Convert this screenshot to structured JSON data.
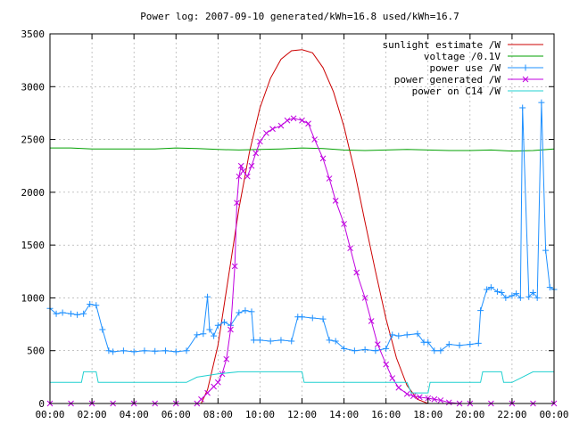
{
  "chart_data": {
    "type": "line",
    "title": "Power log: 2007-09-10 generated/kWh=16.8 used/kWh=16.7",
    "xlabel": "",
    "ylabel": "",
    "xlim": [
      0,
      24
    ],
    "ylim": [
      0,
      3500
    ],
    "x_ticks": [
      {
        "value": 0,
        "label": "00:00"
      },
      {
        "value": 2,
        "label": "02:00"
      },
      {
        "value": 4,
        "label": "04:00"
      },
      {
        "value": 6,
        "label": "06:00"
      },
      {
        "value": 8,
        "label": "08:00"
      },
      {
        "value": 10,
        "label": "10:00"
      },
      {
        "value": 12,
        "label": "12:00"
      },
      {
        "value": 14,
        "label": "14:00"
      },
      {
        "value": 16,
        "label": "16:00"
      },
      {
        "value": 18,
        "label": "18:00"
      },
      {
        "value": 20,
        "label": "20:00"
      },
      {
        "value": 22,
        "label": "22:00"
      },
      {
        "value": 24,
        "label": "00:00"
      }
    ],
    "y_ticks": [
      {
        "value": 0,
        "label": "0"
      },
      {
        "value": 500,
        "label": "500"
      },
      {
        "value": 1000,
        "label": "1000"
      },
      {
        "value": 1500,
        "label": "1500"
      },
      {
        "value": 2000,
        "label": "2000"
      },
      {
        "value": 2500,
        "label": "2500"
      },
      {
        "value": 3000,
        "label": "3000"
      },
      {
        "value": 3500,
        "label": "3500"
      }
    ],
    "grid": true,
    "legend_position": "top-right",
    "series": [
      {
        "name": "sunlight estimate /W",
        "color": "#cc0000",
        "style": "line",
        "x": [
          7.2,
          7.5,
          8.0,
          8.5,
          9.0,
          9.5,
          10.0,
          10.5,
          11.0,
          11.5,
          12.0,
          12.5,
          13.0,
          13.5,
          14.0,
          14.5,
          15.0,
          15.5,
          16.0,
          16.5,
          17.0,
          17.5,
          18.0
        ],
        "y": [
          0,
          130,
          550,
          1200,
          1850,
          2380,
          2800,
          3080,
          3260,
          3340,
          3350,
          3320,
          3180,
          2950,
          2620,
          2200,
          1720,
          1250,
          800,
          430,
          170,
          40,
          0
        ]
      },
      {
        "name": "voltage /0.1V",
        "color": "#00a000",
        "style": "line",
        "x": [
          0.0,
          1.0,
          2.0,
          3.0,
          4.0,
          5.0,
          6.0,
          7.0,
          8.0,
          9.0,
          10.0,
          11.0,
          12.0,
          13.0,
          14.0,
          15.0,
          16.0,
          17.0,
          18.0,
          19.0,
          20.0,
          21.0,
          22.0,
          23.0,
          24.0
        ],
        "y": [
          2420,
          2420,
          2410,
          2410,
          2410,
          2410,
          2420,
          2415,
          2405,
          2400,
          2405,
          2410,
          2420,
          2415,
          2400,
          2395,
          2400,
          2405,
          2400,
          2395,
          2395,
          2400,
          2390,
          2395,
          2410
        ]
      },
      {
        "name": "power use /W",
        "color": "#1e90ff",
        "style": "linespoints-plus",
        "x": [
          0.0,
          0.3,
          0.6,
          1.0,
          1.3,
          1.6,
          1.9,
          2.2,
          2.5,
          2.8,
          3.0,
          3.5,
          4.0,
          4.5,
          5.0,
          5.5,
          6.0,
          6.5,
          7.0,
          7.3,
          7.5,
          7.6,
          7.8,
          8.0,
          8.3,
          8.6,
          9.0,
          9.3,
          9.6,
          9.7,
          10.0,
          10.5,
          11.0,
          11.5,
          11.8,
          12.0,
          12.5,
          13.0,
          13.3,
          13.6,
          14.0,
          14.5,
          15.0,
          15.5,
          16.0,
          16.3,
          16.6,
          17.0,
          17.5,
          17.8,
          18.0,
          18.3,
          18.6,
          19.0,
          19.5,
          20.0,
          20.4,
          20.5,
          20.8,
          21.0,
          21.3,
          21.5,
          21.7,
          22.0,
          22.2,
          22.4,
          22.5,
          22.8,
          23.0,
          23.2,
          23.4,
          23.6,
          23.8,
          24.0
        ],
        "y": [
          900,
          850,
          860,
          850,
          840,
          850,
          940,
          930,
          700,
          500,
          490,
          500,
          490,
          500,
          495,
          500,
          490,
          500,
          650,
          660,
          1010,
          700,
          640,
          740,
          770,
          740,
          860,
          880,
          870,
          600,
          600,
          590,
          600,
          590,
          820,
          820,
          810,
          800,
          600,
          590,
          520,
          500,
          510,
          500,
          520,
          650,
          640,
          650,
          660,
          580,
          580,
          500,
          500,
          560,
          550,
          560,
          570,
          880,
          1080,
          1100,
          1060,
          1050,
          1000,
          1020,
          1040,
          1000,
          2800,
          1010,
          1050,
          1000,
          2850,
          1450,
          1100,
          1080
        ]
      },
      {
        "name": "power generated /W",
        "color": "#c000e0",
        "style": "linespoints-cross",
        "x": [
          0.0,
          1.0,
          2.0,
          3.0,
          4.0,
          5.0,
          6.0,
          7.0,
          7.2,
          7.5,
          7.8,
          8.0,
          8.2,
          8.4,
          8.6,
          8.8,
          8.9,
          9.0,
          9.1,
          9.2,
          9.4,
          9.6,
          9.8,
          10.0,
          10.3,
          10.6,
          11.0,
          11.3,
          11.6,
          12.0,
          12.3,
          12.6,
          13.0,
          13.3,
          13.6,
          14.0,
          14.3,
          14.6,
          15.0,
          15.3,
          15.6,
          16.0,
          16.3,
          16.6,
          17.0,
          17.3,
          17.6,
          18.0,
          18.3,
          18.6,
          19.0,
          19.5,
          20.0,
          21.0,
          22.0,
          23.0,
          24.0
        ],
        "y": [
          0,
          0,
          0,
          0,
          0,
          0,
          0,
          0,
          40,
          100,
          160,
          200,
          280,
          420,
          700,
          1300,
          1900,
          2150,
          2250,
          2200,
          2150,
          2250,
          2370,
          2480,
          2560,
          2600,
          2630,
          2680,
          2700,
          2680,
          2650,
          2500,
          2320,
          2130,
          1920,
          1700,
          1470,
          1240,
          1000,
          780,
          560,
          370,
          240,
          150,
          90,
          70,
          60,
          50,
          40,
          30,
          10,
          0,
          0,
          0,
          0,
          0,
          0
        ]
      },
      {
        "name": "power on C14 /W",
        "color": "#20d0d0",
        "style": "line",
        "x": [
          0.0,
          1.5,
          1.6,
          2.2,
          2.3,
          6.5,
          7.0,
          8.0,
          9.0,
          10.0,
          12.0,
          12.1,
          14.0,
          16.0,
          17.0,
          17.2,
          18.0,
          18.1,
          20.5,
          20.6,
          21.5,
          21.6,
          22.0,
          23.0,
          24.0
        ],
        "y": [
          200,
          200,
          300,
          300,
          200,
          200,
          250,
          280,
          300,
          300,
          300,
          200,
          200,
          200,
          200,
          100,
          100,
          200,
          200,
          300,
          300,
          200,
          200,
          300,
          300
        ]
      }
    ]
  }
}
